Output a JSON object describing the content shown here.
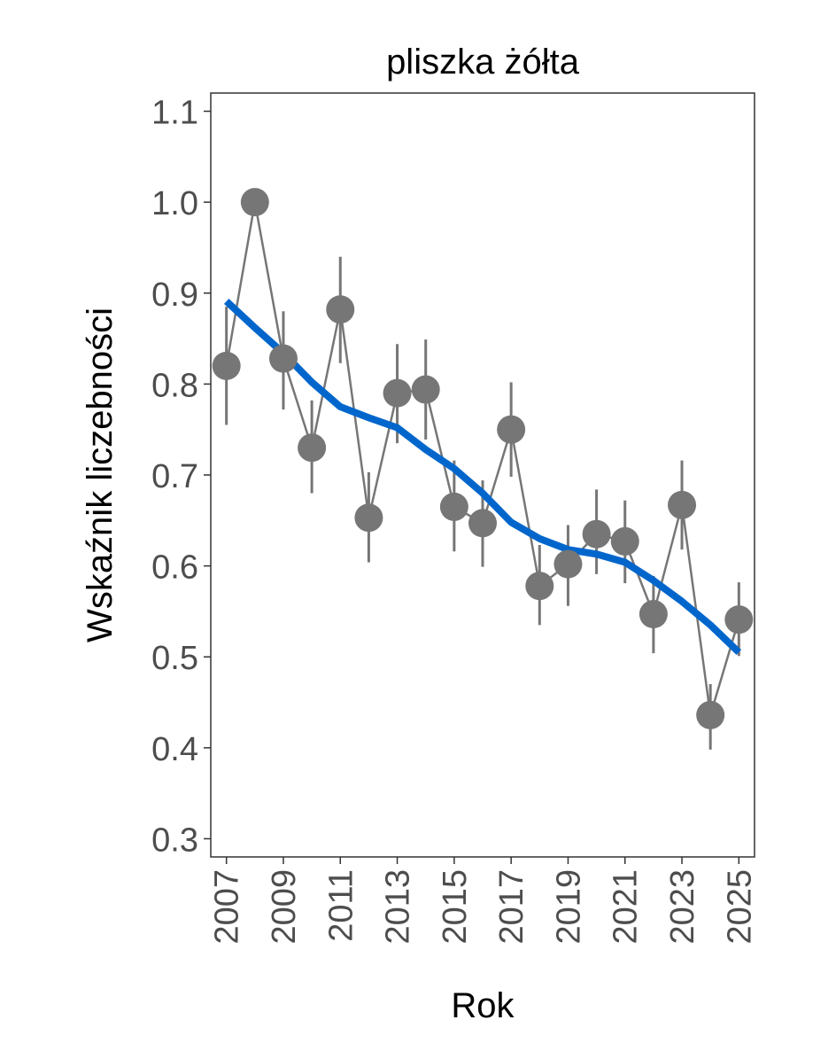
{
  "chart_data": {
    "type": "line",
    "title": "pliszka żółta",
    "xlabel": "Rok",
    "ylabel": "Wskaźnik liczebności",
    "ylim": [
      0.28,
      1.12
    ],
    "xlim": [
      2006.45,
      2025.55
    ],
    "yticks": [
      "0.3",
      "0.4",
      "0.5",
      "0.6",
      "0.7",
      "0.8",
      "0.9",
      "1.0",
      "1.1"
    ],
    "xticks": [
      "2007",
      "2009",
      "2011",
      "2013",
      "2015",
      "2017",
      "2019",
      "2021",
      "2023",
      "2025"
    ],
    "grid": false,
    "colors": {
      "points": "#767676",
      "trend": "#0066cc",
      "axis": "#333333",
      "tick_text": "#4d4d4d"
    },
    "series": [
      {
        "name": "index",
        "x": [
          2007,
          2008,
          2009,
          2010,
          2011,
          2012,
          2013,
          2014,
          2015,
          2016,
          2017,
          2018,
          2019,
          2020,
          2021,
          2022,
          2023,
          2024,
          2025
        ],
        "y": [
          0.82,
          1.0,
          0.828,
          0.73,
          0.882,
          0.653,
          0.79,
          0.794,
          0.665,
          0.647,
          0.75,
          0.578,
          0.602,
          0.635,
          0.627,
          0.547,
          0.667,
          0.436,
          0.541
        ],
        "lower": [
          0.755,
          null,
          0.772,
          0.68,
          0.823,
          0.604,
          0.735,
          0.739,
          0.616,
          0.599,
          0.698,
          0.535,
          0.556,
          0.591,
          0.581,
          0.504,
          0.618,
          0.398,
          0.501
        ],
        "upper": [
          0.885,
          null,
          0.88,
          0.782,
          0.94,
          0.703,
          0.844,
          0.849,
          0.716,
          0.694,
          0.802,
          0.623,
          0.645,
          0.684,
          0.672,
          0.589,
          0.716,
          0.47,
          0.582
        ]
      },
      {
        "name": "trend",
        "x": [
          2007,
          2008,
          2009,
          2010,
          2011,
          2012,
          2013,
          2014,
          2015,
          2016,
          2017,
          2018,
          2019,
          2020,
          2021,
          2022,
          2023,
          2024,
          2025
        ],
        "y": [
          0.891,
          0.862,
          0.834,
          0.802,
          0.775,
          0.763,
          0.752,
          0.728,
          0.707,
          0.68,
          0.648,
          0.63,
          0.618,
          0.613,
          0.604,
          0.584,
          0.561,
          0.535,
          0.505
        ]
      }
    ]
  }
}
